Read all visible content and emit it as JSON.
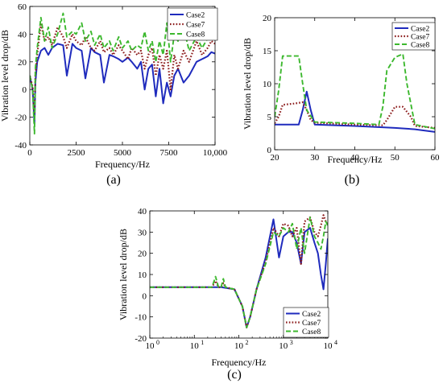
{
  "colors": {
    "Case2": "#1f2bbd",
    "Case7": "#8b1a1a",
    "Case8": "#3cb82e"
  },
  "chart_data": [
    {
      "id": "a",
      "type": "line",
      "caption": "(a)",
      "xlabel": "Frequency/Hz",
      "ylabel": "Vibration level drop/dB",
      "xlim": [
        0,
        10000
      ],
      "ylim": [
        -40,
        60
      ],
      "xticks": [
        0,
        2500,
        5000,
        7500,
        10000
      ],
      "xtick_labels": [
        "0",
        "2500",
        "5000",
        "7500",
        "10,000"
      ],
      "yticks": [
        -40,
        -20,
        0,
        20,
        40,
        60
      ],
      "ytick_labels": [
        "-40",
        "-20",
        "0",
        "20",
        "40",
        "60"
      ],
      "legend_position": "top-right",
      "series": [
        {
          "name": "Case2",
          "style": "solid",
          "x": [
            0,
            150,
            250,
            300,
            400,
            600,
            800,
            1000,
            1200,
            1500,
            1800,
            2000,
            2300,
            2500,
            2800,
            3000,
            3300,
            3500,
            3800,
            4000,
            4300,
            4500,
            4800,
            5000,
            5300,
            5500,
            5800,
            6000,
            6200,
            6400,
            6600,
            6800,
            7000,
            7200,
            7400,
            7600,
            7800,
            8000,
            8300,
            8600,
            9000,
            9300,
            9600,
            9800,
            10000
          ],
          "y": [
            10,
            0,
            -25,
            5,
            20,
            28,
            30,
            25,
            30,
            33,
            32,
            10,
            33,
            30,
            28,
            8,
            30,
            27,
            25,
            5,
            25,
            24,
            22,
            20,
            23,
            20,
            15,
            20,
            0,
            15,
            18,
            -5,
            15,
            -10,
            5,
            -5,
            10,
            15,
            5,
            10,
            20,
            22,
            24,
            27,
            26
          ]
        },
        {
          "name": "Case7",
          "style": "dotted",
          "x": [
            0,
            150,
            250,
            300,
            400,
            600,
            800,
            1000,
            1200,
            1500,
            1800,
            2000,
            2300,
            2500,
            2800,
            3000,
            3300,
            3500,
            3800,
            4000,
            4300,
            4500,
            4800,
            5000,
            5300,
            5500,
            5800,
            6000,
            6200,
            6400,
            6600,
            6800,
            7000,
            7200,
            7400,
            7600,
            7800,
            8000,
            8300,
            8600,
            9000,
            9300,
            9600,
            9800,
            10000
          ],
          "y": [
            10,
            2,
            -20,
            10,
            25,
            48,
            35,
            38,
            32,
            45,
            38,
            30,
            40,
            35,
            32,
            38,
            30,
            28,
            35,
            27,
            30,
            25,
            32,
            28,
            22,
            30,
            25,
            28,
            15,
            25,
            30,
            10,
            25,
            15,
            28,
            0,
            25,
            15,
            28,
            20,
            35,
            25,
            30,
            35,
            33
          ]
        },
        {
          "name": "Case8",
          "style": "dashed",
          "x": [
            0,
            150,
            250,
            300,
            400,
            600,
            800,
            1000,
            1200,
            1500,
            1800,
            2000,
            2300,
            2500,
            2800,
            3000,
            3300,
            3500,
            3800,
            4000,
            4300,
            4500,
            4800,
            5000,
            5300,
            5500,
            5800,
            6000,
            6200,
            6400,
            6600,
            6800,
            7000,
            7200,
            7400,
            7600,
            7800,
            8000,
            8300,
            8600,
            9000,
            9300,
            9600,
            9800,
            10000
          ],
          "y": [
            10,
            0,
            -32,
            15,
            30,
            52,
            35,
            45,
            30,
            40,
            55,
            38,
            42,
            40,
            48,
            35,
            42,
            32,
            40,
            30,
            35,
            28,
            38,
            30,
            35,
            28,
            32,
            30,
            42,
            28,
            35,
            20,
            35,
            25,
            48,
            20,
            40,
            35,
            45,
            28,
            38,
            30,
            37,
            42,
            40
          ]
        }
      ]
    },
    {
      "id": "b",
      "type": "line",
      "caption": "(b)",
      "xlabel": "Frequency/Hz",
      "ylabel": "Vibration level drop/dB",
      "xlim": [
        20,
        60
      ],
      "ylim": [
        0,
        20
      ],
      "xticks": [
        20,
        30,
        40,
        50,
        60
      ],
      "xtick_labels": [
        "20",
        "30",
        "40",
        "50",
        "60"
      ],
      "yticks": [
        0,
        5,
        10,
        15,
        20
      ],
      "ytick_labels": [
        "0",
        "5",
        "10",
        "15",
        "20"
      ],
      "legend_position": "top-right",
      "series": [
        {
          "name": "Case2",
          "style": "solid",
          "x": [
            20,
            26,
            27,
            28,
            29,
            30,
            40,
            50,
            55,
            60
          ],
          "y": [
            3.8,
            3.8,
            6,
            8.8,
            6,
            3.8,
            3.6,
            3.3,
            3.1,
            2.7
          ]
        },
        {
          "name": "Case7",
          "style": "dotted",
          "x": [
            20,
            21,
            22,
            25,
            27,
            28,
            29,
            30,
            40,
            47,
            48,
            50,
            52,
            54,
            55,
            60
          ],
          "y": [
            4,
            5,
            6.8,
            7,
            7.2,
            6,
            4.5,
            4.1,
            3.8,
            3.7,
            4.5,
            6.5,
            6.5,
            5,
            3.6,
            3.3
          ]
        },
        {
          "name": "Case8",
          "style": "dashed",
          "x": [
            20,
            21,
            22,
            25,
            26,
            27,
            28,
            30,
            40,
            46,
            47,
            48,
            50,
            52,
            53,
            55,
            60
          ],
          "y": [
            5,
            9,
            14.2,
            14.2,
            14.2,
            10,
            6,
            4.2,
            4,
            3.8,
            6.5,
            12,
            14,
            14.5,
            10,
            3.8,
            3.2
          ]
        }
      ]
    },
    {
      "id": "c",
      "type": "line",
      "caption": "(c)",
      "xlabel": "Frequency/Hz",
      "ylabel": "Vibration level drop/dB",
      "xscale": "log",
      "xlim": [
        1,
        10000
      ],
      "ylim": [
        -20,
        40
      ],
      "xticks": [
        1,
        10,
        100,
        1000,
        10000
      ],
      "xtick_labels": [
        "10",
        "10",
        "10",
        "10",
        "10"
      ],
      "xtick_exponents": [
        "0",
        "1",
        "2",
        "3",
        "4"
      ],
      "yticks": [
        -20,
        -10,
        0,
        10,
        20,
        30,
        40
      ],
      "ytick_labels": [
        "-20",
        "-10",
        "0",
        "10",
        "20",
        "30",
        "40"
      ],
      "legend_position": "bottom-right",
      "series": [
        {
          "name": "Case2",
          "style": "solid",
          "x": [
            1,
            10,
            40,
            80,
            120,
            150,
            180,
            250,
            400,
            600,
            800,
            1000,
            1300,
            1600,
            2000,
            2500,
            3000,
            4000,
            5000,
            6000,
            7000,
            8000,
            9000,
            10000
          ],
          "y": [
            4,
            4,
            4,
            3,
            -5,
            -15,
            -10,
            3,
            18,
            36,
            18,
            28,
            30,
            30,
            25,
            15,
            30,
            32,
            25,
            20,
            10,
            3,
            15,
            27
          ]
        },
        {
          "name": "Case7",
          "style": "dotted",
          "x": [
            1,
            10,
            25,
            30,
            35,
            40,
            45,
            50,
            80,
            120,
            150,
            180,
            250,
            400,
            600,
            800,
            1000,
            1300,
            1600,
            2000,
            2500,
            3000,
            4000,
            5000,
            6000,
            7000,
            8000,
            9000,
            10000
          ],
          "y": [
            4,
            4,
            4,
            7,
            4,
            4,
            6,
            4,
            3,
            -5,
            -15,
            -10,
            3,
            16,
            32,
            28,
            34,
            33,
            28,
            32,
            15,
            35,
            37,
            30,
            28,
            33,
            38,
            35,
            34
          ]
        },
        {
          "name": "Case8",
          "style": "dashed",
          "x": [
            1,
            10,
            25,
            30,
            35,
            40,
            45,
            50,
            80,
            120,
            150,
            180,
            250,
            400,
            600,
            800,
            1000,
            1300,
            1600,
            2000,
            2500,
            3000,
            4000,
            5000,
            6000,
            7000,
            8000,
            9000,
            10000
          ],
          "y": [
            4,
            4,
            4,
            9,
            4,
            4,
            8,
            4,
            3,
            -5,
            -15,
            -10,
            3,
            15,
            30,
            28,
            32,
            30,
            34,
            22,
            32,
            20,
            37,
            28,
            25,
            22,
            28,
            35,
            33
          ]
        }
      ]
    }
  ]
}
